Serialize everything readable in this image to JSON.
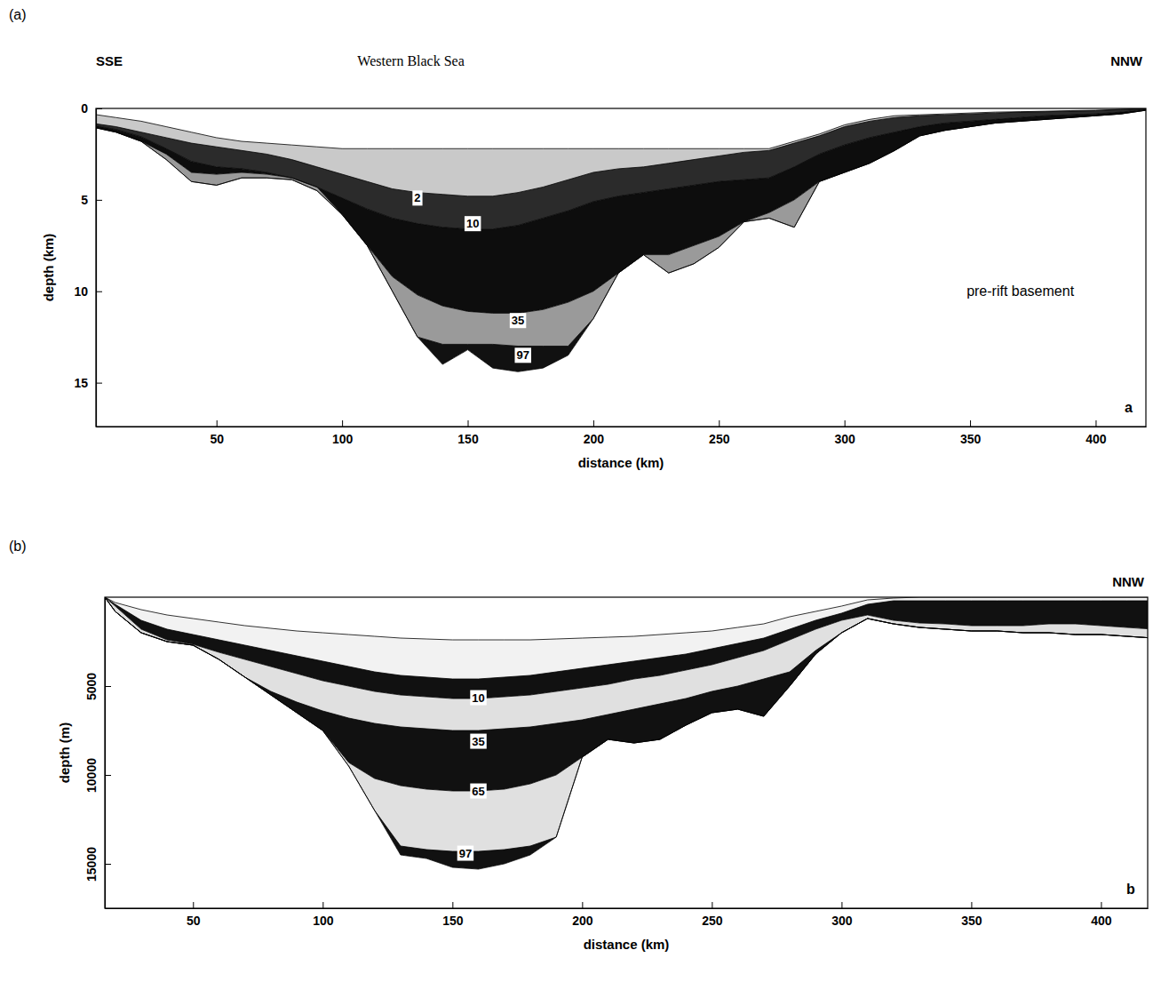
{
  "chart_data": [
    {
      "type": "area",
      "panel": "(a)",
      "title": "Western Black Sea",
      "left_label": "SSE",
      "right_label": "NNW",
      "corner_label": "a",
      "xlabel": "distance (km)",
      "ylabel": "depth (km)",
      "xlim": [
        2,
        420
      ],
      "xticks": [
        50,
        100,
        150,
        200,
        250,
        300,
        350,
        400
      ],
      "ylim": [
        0,
        17.4
      ],
      "yticks": [
        0,
        5,
        10,
        15
      ],
      "x": [
        0,
        10,
        20,
        30,
        40,
        50,
        60,
        70,
        80,
        90,
        100,
        110,
        120,
        130,
        140,
        150,
        160,
        170,
        180,
        190,
        200,
        210,
        220,
        230,
        240,
        250,
        260,
        270,
        280,
        290,
        300,
        310,
        320,
        330,
        340,
        350,
        360,
        370,
        380,
        390,
        400,
        410,
        420
      ],
      "series": [
        {
          "color": "#c9c9c9",
          "values": [
            0.3,
            0.5,
            0.7,
            1.0,
            1.3,
            1.6,
            1.8,
            1.9,
            2.0,
            2.1,
            2.2,
            2.2,
            2.2,
            2.2,
            2.2,
            2.2,
            2.2,
            2.2,
            2.2,
            2.2,
            2.2,
            2.2,
            2.2,
            2.2,
            2.2,
            2.2,
            2.2,
            2.2,
            1.8,
            1.4,
            0.9,
            0.6,
            0.4,
            0.35,
            0.3,
            0.25,
            0.2,
            0.18,
            0.15,
            0.12,
            0.1,
            0.05,
            0
          ]
        },
        {
          "name": "2",
          "label_x": 130,
          "label_y": 4.9,
          "color": "#2b2b2b",
          "values": [
            0.8,
            1.0,
            1.3,
            1.6,
            1.9,
            2.1,
            2.3,
            2.5,
            2.8,
            3.2,
            3.6,
            4.0,
            4.4,
            4.6,
            4.7,
            4.8,
            4.8,
            4.6,
            4.3,
            3.9,
            3.5,
            3.3,
            3.2,
            3.0,
            2.8,
            2.6,
            2.4,
            2.3,
            1.9,
            1.5,
            1.0,
            0.7,
            0.5,
            0.4,
            0.35,
            0.3,
            0.25,
            0.2,
            0.18,
            0.15,
            0.12,
            0.06,
            0.02
          ]
        },
        {
          "name": "10",
          "label_x": 152,
          "label_y": 6.3,
          "color": "#0d0d0d",
          "values": [
            0.9,
            1.15,
            1.55,
            2.2,
            2.9,
            3.2,
            3.3,
            3.5,
            3.8,
            4.3,
            4.9,
            5.5,
            6.0,
            6.3,
            6.5,
            6.6,
            6.6,
            6.4,
            6.0,
            5.6,
            5.1,
            4.8,
            4.6,
            4.4,
            4.2,
            4.0,
            3.9,
            3.8,
            3.2,
            2.5,
            2.0,
            1.6,
            1.3,
            1.0,
            0.8,
            0.7,
            0.6,
            0.5,
            0.4,
            0.35,
            0.3,
            0.2,
            0.06
          ]
        },
        {
          "name": "35",
          "label_x": 170,
          "label_y": 11.6,
          "color": "#9a9a9a",
          "values": [
            1.0,
            1.3,
            1.8,
            2.5,
            3.5,
            3.6,
            3.5,
            3.6,
            3.8,
            4.3,
            5.8,
            7.5,
            9.2,
            10.2,
            10.8,
            11.1,
            11.2,
            11.2,
            11.0,
            10.6,
            10.0,
            9.0,
            8.0,
            8.0,
            7.5,
            7.0,
            6.2,
            5.7,
            5.0,
            4.0,
            3.5,
            3.0,
            2.3,
            1.5,
            1.2,
            1.0,
            0.8,
            0.7,
            0.6,
            0.5,
            0.4,
            0.3,
            0.1
          ]
        },
        {
          "name": "97",
          "label_x": 172,
          "label_y": 13.5,
          "color": "#111111",
          "values": [
            1.0,
            1.3,
            1.8,
            2.8,
            4.0,
            4.2,
            3.8,
            3.8,
            3.9,
            4.5,
            5.8,
            7.5,
            10.0,
            12.5,
            12.9,
            12.9,
            12.9,
            13.0,
            13.0,
            13.0,
            11.5,
            9.0,
            8.0,
            9.0,
            8.5,
            7.6,
            6.2,
            6.0,
            6.5,
            4.0,
            3.5,
            3.0,
            2.3,
            1.5,
            1.2,
            1.0,
            0.8,
            0.7,
            0.6,
            0.5,
            0.4,
            0.3,
            0.1
          ]
        },
        {
          "color": "#ffffff",
          "values": [
            1.0,
            1.3,
            1.8,
            2.8,
            4.0,
            4.2,
            3.8,
            3.8,
            3.9,
            4.5,
            5.8,
            7.5,
            10.0,
            12.5,
            14.0,
            13.2,
            14.2,
            14.4,
            14.2,
            13.5,
            11.5,
            9.0,
            8.0,
            9.0,
            8.5,
            7.6,
            6.2,
            6.0,
            6.5,
            4.0,
            3.5,
            3.0,
            2.3,
            1.5,
            1.2,
            1.0,
            0.8,
            0.7,
            0.6,
            0.5,
            0.4,
            0.3,
            0.1
          ]
        }
      ],
      "annotations": [
        {
          "text": "pre-rift basement",
          "x": 370,
          "y": 10
        }
      ]
    },
    {
      "type": "area",
      "panel": "(b)",
      "right_label": "NNW",
      "corner_label": "b",
      "xlabel": "distance (km)",
      "ylabel": "depth (m)",
      "xlim": [
        16,
        418
      ],
      "xticks": [
        50,
        100,
        150,
        200,
        250,
        300,
        350,
        400
      ],
      "ylim": [
        0,
        17500
      ],
      "yticks": [
        5000,
        10000,
        15000
      ],
      "x": [
        16,
        20,
        30,
        40,
        50,
        60,
        70,
        80,
        90,
        100,
        110,
        120,
        130,
        140,
        150,
        160,
        170,
        180,
        190,
        200,
        210,
        220,
        230,
        240,
        250,
        260,
        270,
        280,
        290,
        300,
        310,
        320,
        330,
        340,
        350,
        360,
        370,
        380,
        390,
        400,
        410,
        420,
        425
      ],
      "series": [
        {
          "color": "#f2f2f2",
          "values": [
            0,
            300,
            700,
            1000,
            1200,
            1400,
            1600,
            1750,
            1900,
            2000,
            2100,
            2200,
            2300,
            2350,
            2400,
            2400,
            2400,
            2400,
            2350,
            2300,
            2250,
            2200,
            2100,
            2000,
            1900,
            1700,
            1500,
            1100,
            800,
            500,
            150,
            50,
            0,
            0,
            0,
            0,
            0,
            0,
            0,
            0,
            0,
            0,
            0
          ]
        },
        {
          "color": "#111111",
          "values": [
            0,
            400,
            1300,
            1800,
            2100,
            2400,
            2700,
            3000,
            3300,
            3600,
            3900,
            4200,
            4400,
            4500,
            4600,
            4600,
            4500,
            4400,
            4200,
            4000,
            3800,
            3600,
            3400,
            3200,
            2900,
            2600,
            2300,
            1800,
            1300,
            900,
            400,
            200,
            200,
            200,
            200,
            200,
            200,
            200,
            200,
            200,
            200,
            200,
            200
          ]
        },
        {
          "name": "10",
          "label_x": 160,
          "label_y": 5650,
          "color": "#e0e0e0",
          "values": [
            0,
            500,
            1800,
            2400,
            2650,
            3100,
            3500,
            3900,
            4300,
            4700,
            5000,
            5300,
            5500,
            5600,
            5700,
            5700,
            5600,
            5500,
            5300,
            5100,
            4900,
            4600,
            4400,
            4100,
            3800,
            3400,
            3000,
            2400,
            1800,
            1300,
            1000,
            1300,
            1450,
            1500,
            1600,
            1600,
            1600,
            1500,
            1500,
            1600,
            1700,
            1800,
            1600
          ]
        },
        {
          "name": "35",
          "label_x": 160,
          "label_y": 8100,
          "color": "#111111",
          "values": [
            0,
            800,
            2000,
            2500,
            2700,
            3500,
            4500,
            5300,
            5900,
            6400,
            6800,
            7100,
            7300,
            7400,
            7500,
            7500,
            7400,
            7300,
            7100,
            6900,
            6600,
            6300,
            6000,
            5700,
            5300,
            5000,
            4600,
            4200,
            3000,
            2000,
            1200,
            1500,
            1700,
            1800,
            1900,
            1900,
            2000,
            2000,
            2100,
            2100,
            2200,
            2300,
            2200
          ]
        },
        {
          "name": "65",
          "label_x": 160,
          "label_y": 10900,
          "color": "#e0e0e0",
          "values": [
            0,
            800,
            2000,
            2500,
            2700,
            3500,
            4500,
            5500,
            6500,
            7500,
            9300,
            10200,
            10600,
            10800,
            10900,
            10900,
            10800,
            10500,
            10000,
            9000,
            8000,
            8200,
            8000,
            7200,
            6500,
            6300,
            6700,
            5000,
            3200,
            2000,
            1200,
            1500,
            1700,
            1800,
            1900,
            1900,
            2000,
            2000,
            2100,
            2100,
            2200,
            2300,
            2200
          ]
        },
        {
          "name": "97",
          "label_x": 155,
          "label_y": 14400,
          "color": "#111111",
          "values": [
            0,
            800,
            2000,
            2500,
            2700,
            3500,
            4500,
            5500,
            6500,
            7500,
            9500,
            12000,
            14000,
            14200,
            14300,
            14300,
            14200,
            14000,
            13500,
            9000,
            8000,
            8200,
            8000,
            7200,
            6500,
            6300,
            6700,
            5000,
            3200,
            2000,
            1200,
            1500,
            1700,
            1800,
            1900,
            1900,
            2000,
            2000,
            2100,
            2100,
            2200,
            2300,
            2200
          ]
        },
        {
          "color": "#ffffff",
          "values": [
            0,
            800,
            2000,
            2500,
            2700,
            3500,
            4500,
            5500,
            6500,
            7500,
            9500,
            12000,
            14500,
            14700,
            15200,
            15300,
            15000,
            14500,
            13500,
            9000,
            8000,
            8200,
            8000,
            7200,
            6500,
            6300,
            6700,
            5000,
            3200,
            2000,
            1200,
            1500,
            1700,
            1800,
            1900,
            1900,
            2000,
            2000,
            2100,
            2100,
            2200,
            2300,
            2200
          ]
        }
      ]
    }
  ]
}
